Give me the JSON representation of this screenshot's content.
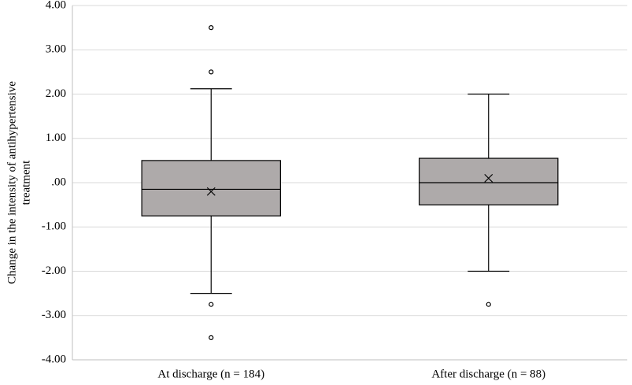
{
  "chart_data": {
    "type": "box",
    "ylabel": [
      "Change in the intensity of antihypertensive",
      "treatment"
    ],
    "categories": [
      "At discharge (n = 184)",
      "After discharge (n = 88)"
    ],
    "boxes": [
      {
        "whislo": -2.5,
        "q1": -0.75,
        "median": -0.15,
        "q3": 0.5,
        "whishi": 2.12,
        "mean": -0.2,
        "outliers": [
          3.5,
          2.5,
          -2.75,
          -3.5
        ]
      },
      {
        "whislo": -2.0,
        "q1": -0.5,
        "median": 0.0,
        "q3": 0.55,
        "whishi": 2.0,
        "mean": 0.1,
        "outliers": [
          -2.75
        ]
      }
    ],
    "color": "#aeaaaa",
    "ylim": [
      -4,
      4
    ],
    "yticks": [
      {
        "value": -4,
        "label": "-4.00"
      },
      {
        "value": -3,
        "label": "-3.00"
      },
      {
        "value": -2,
        "label": "-2.00"
      },
      {
        "value": -1,
        "label": "-1.00"
      },
      {
        "value": 0,
        "label": ".00"
      },
      {
        "value": 1,
        "label": "1.00"
      },
      {
        "value": 2,
        "label": "2.00"
      },
      {
        "value": 3,
        "label": "3.00"
      },
      {
        "value": 4,
        "label": "4.00"
      }
    ],
    "grid": true
  }
}
